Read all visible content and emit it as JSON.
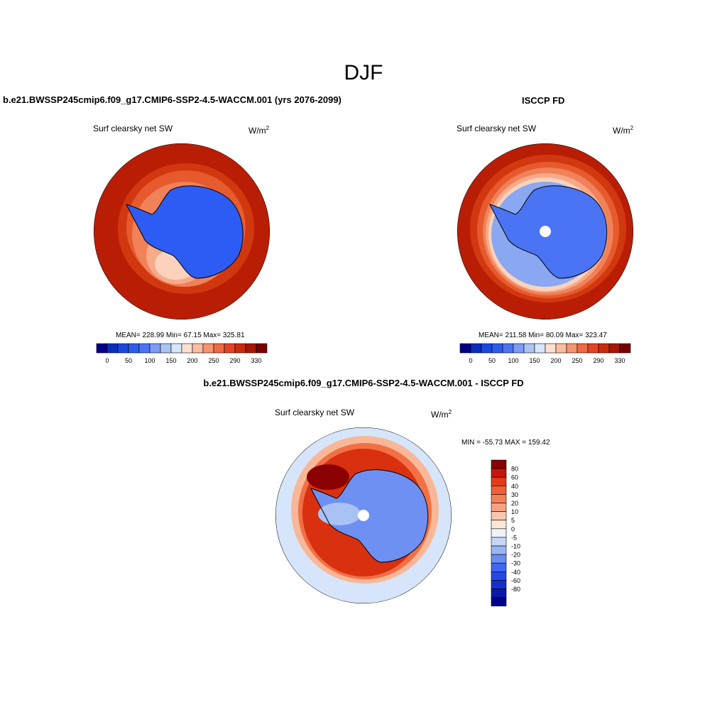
{
  "figure": {
    "season_title": "DJF"
  },
  "panels": [
    {
      "title": "b.e21.BWSSP245cmip6.f09_g17.CMIP6-SSP2-4.5-WACCM.001 (yrs 2076-2099)",
      "variable": "Surf clearsky net SW",
      "units_base": "W/m",
      "units_exp": "2",
      "stats": "MEAN= 228.99  Min=  67.15  Max= 325.81"
    },
    {
      "title": "ISCCP FD",
      "variable": "Surf clearsky net SW",
      "units_base": "W/m",
      "units_exp": "2",
      "stats": "MEAN= 211.58  Min=  80.09  Max= 323.47"
    },
    {
      "title": "b.e21.BWSSP245cmip6.f09_g17.CMIP6-SSP2-4.5-WACCM.001 - ISCCP FD",
      "variable": "Surf clearsky net SW",
      "units_base": "W/m",
      "units_exp": "2",
      "stats": "MIN = -55.73 MAX = 159.42"
    }
  ],
  "horizontal_colorbar": {
    "colors": [
      "#00008b",
      "#0a2dbd",
      "#1a47e0",
      "#2e5cf0",
      "#4a74f4",
      "#7d9cf2",
      "#aac4f3",
      "#d6e6fa",
      "#fde0cf",
      "#f9bda1",
      "#f5956f",
      "#ef6a44",
      "#e44222",
      "#cc2a0c",
      "#a81605",
      "#7a0000"
    ],
    "tick_labels": [
      "0",
      "50",
      "100",
      "150",
      "200",
      "250",
      "290",
      "330"
    ]
  },
  "vertical_colorbar": {
    "colors_top_to_bottom": [
      "#8b0000",
      "#c5160d",
      "#e33b1a",
      "#ef5e37",
      "#f48058",
      "#f6a283",
      "#f9c7ad",
      "#fde6d6",
      "#edf3fc",
      "#c6d7f5",
      "#99b4f2",
      "#6a8cf2",
      "#3e66f2",
      "#2448e6",
      "#1530c8",
      "#0a19a6",
      "#00008b"
    ],
    "tick_labels_top_to_bottom": [
      "80",
      "60",
      "40",
      "30",
      "20",
      "10",
      "5",
      "0",
      "-5",
      "-10",
      "-20",
      "-30",
      "-40",
      "-60",
      "-80"
    ]
  },
  "map_colors": {
    "outer_ring": "#b91e05",
    "ring_2": "#d2380f",
    "ring_3": "#e65a2e",
    "ring_4": "#f08159",
    "ring_5": "#f6aa8a",
    "ring_6": "#fbd3bd",
    "ice_low": "#2c5cf3",
    "ice_mid": "#4a74f4",
    "ice_light": "#8aa8f2",
    "diff_bg": "#d7e5fb",
    "diff_dark": "#8b0000",
    "diff_red": "#d9300f",
    "diff_orange": "#f27045",
    "diff_light": "#f8b898",
    "diff_blue": "#6e90f2",
    "diff_lightblue": "#a9c2f4"
  }
}
